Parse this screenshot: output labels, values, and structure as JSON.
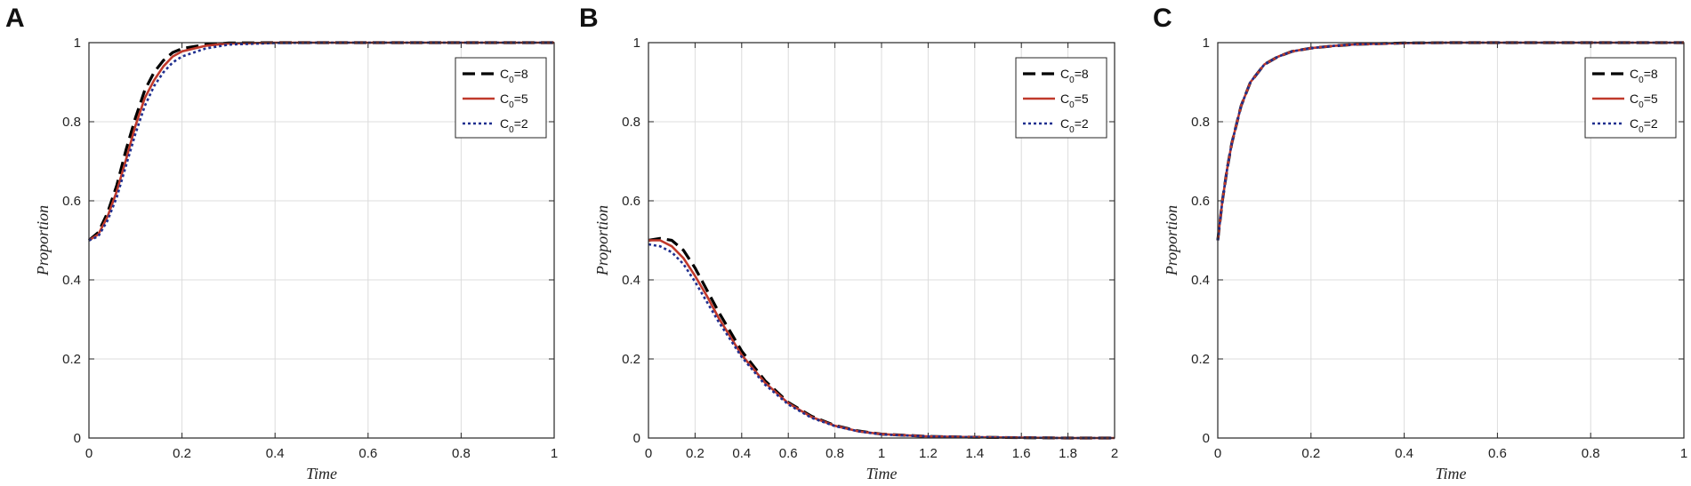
{
  "chart_data": [
    {
      "panel": "A",
      "type": "line",
      "xlabel": "Time",
      "ylabel": "Proportion",
      "xlim": [
        0,
        1
      ],
      "ylim": [
        0,
        1
      ],
      "xticks": [
        "0",
        "0.2",
        "0.4",
        "0.6",
        "0.8",
        "1"
      ],
      "yticks": [
        "0",
        "0.2",
        "0.4",
        "0.6",
        "0.8",
        "1"
      ],
      "grid": true,
      "legend_position": "top-right",
      "series": [
        {
          "name_main": "C",
          "name_sub": "0",
          "name_rest": "=8",
          "color": "#000000",
          "style": "dashed",
          "x": [
            0,
            0.02,
            0.04,
            0.06,
            0.08,
            0.1,
            0.12,
            0.14,
            0.16,
            0.18,
            0.2,
            0.25,
            0.3,
            0.4,
            0.5,
            1.0
          ],
          "y": [
            0.5,
            0.52,
            0.57,
            0.64,
            0.73,
            0.81,
            0.88,
            0.925,
            0.955,
            0.975,
            0.985,
            0.995,
            0.999,
            1.0,
            1.0,
            1.0
          ]
        },
        {
          "name_main": "C",
          "name_sub": "0",
          "name_rest": "=5",
          "color": "#c0392b",
          "style": "solid",
          "x": [
            0,
            0.02,
            0.04,
            0.06,
            0.08,
            0.1,
            0.12,
            0.14,
            0.16,
            0.18,
            0.2,
            0.25,
            0.3,
            0.4,
            0.5,
            1.0
          ],
          "y": [
            0.5,
            0.515,
            0.56,
            0.625,
            0.705,
            0.79,
            0.86,
            0.905,
            0.94,
            0.965,
            0.978,
            0.992,
            0.998,
            1.0,
            1.0,
            1.0
          ]
        },
        {
          "name_main": "C",
          "name_sub": "0",
          "name_rest": "=2",
          "color": "#1f2f8f",
          "style": "dotted",
          "x": [
            0,
            0.02,
            0.04,
            0.06,
            0.08,
            0.1,
            0.12,
            0.14,
            0.16,
            0.18,
            0.2,
            0.25,
            0.3,
            0.4,
            0.5,
            1.0
          ],
          "y": [
            0.5,
            0.51,
            0.55,
            0.61,
            0.69,
            0.77,
            0.84,
            0.89,
            0.925,
            0.95,
            0.965,
            0.985,
            0.995,
            0.999,
            1.0,
            1.0
          ]
        }
      ]
    },
    {
      "panel": "B",
      "type": "line",
      "xlabel": "Time",
      "ylabel": "Proportion",
      "xlim": [
        0,
        2
      ],
      "ylim": [
        0,
        1
      ],
      "xticks": [
        "0",
        "0.2",
        "0.4",
        "0.6",
        "0.8",
        "1",
        "1.2",
        "1.4",
        "1.6",
        "1.8",
        "2"
      ],
      "yticks": [
        "0",
        "0.2",
        "0.4",
        "0.6",
        "0.8",
        "1"
      ],
      "grid": true,
      "legend_position": "top-right",
      "series": [
        {
          "name_main": "C",
          "name_sub": "0",
          "name_rest": "=8",
          "color": "#000000",
          "style": "dashed",
          "x": [
            0,
            0.05,
            0.1,
            0.15,
            0.2,
            0.25,
            0.3,
            0.4,
            0.5,
            0.6,
            0.7,
            0.8,
            0.9,
            1.0,
            1.2,
            1.4,
            1.6,
            1.8,
            2.0
          ],
          "y": [
            0.5,
            0.505,
            0.5,
            0.475,
            0.43,
            0.375,
            0.32,
            0.22,
            0.145,
            0.09,
            0.055,
            0.032,
            0.018,
            0.01,
            0.004,
            0.002,
            0.001,
            0.0,
            0.0
          ]
        },
        {
          "name_main": "C",
          "name_sub": "0",
          "name_rest": "=5",
          "color": "#c0392b",
          "style": "solid",
          "x": [
            0,
            0.05,
            0.1,
            0.15,
            0.2,
            0.25,
            0.3,
            0.4,
            0.5,
            0.6,
            0.7,
            0.8,
            0.9,
            1.0,
            1.2,
            1.4,
            1.6,
            1.8,
            2.0
          ],
          "y": [
            0.5,
            0.5,
            0.485,
            0.455,
            0.41,
            0.36,
            0.305,
            0.21,
            0.14,
            0.088,
            0.053,
            0.031,
            0.017,
            0.01,
            0.004,
            0.002,
            0.001,
            0.0,
            0.0
          ]
        },
        {
          "name_main": "C",
          "name_sub": "0",
          "name_rest": "=2",
          "color": "#1f2f8f",
          "style": "dotted",
          "x": [
            0,
            0.05,
            0.1,
            0.15,
            0.2,
            0.25,
            0.3,
            0.4,
            0.5,
            0.6,
            0.7,
            0.8,
            0.9,
            1.0,
            1.2,
            1.4,
            1.6,
            1.8,
            2.0
          ],
          "y": [
            0.49,
            0.485,
            0.47,
            0.44,
            0.395,
            0.345,
            0.295,
            0.205,
            0.135,
            0.085,
            0.051,
            0.03,
            0.017,
            0.009,
            0.004,
            0.002,
            0.001,
            0.0,
            0.0
          ]
        }
      ]
    },
    {
      "panel": "C",
      "type": "line",
      "xlabel": "Time",
      "ylabel": "Proportion",
      "xlim": [
        0,
        1
      ],
      "ylim": [
        0,
        1
      ],
      "xticks": [
        "0",
        "0.2",
        "0.4",
        "0.6",
        "0.8",
        "1"
      ],
      "yticks": [
        "0",
        "0.2",
        "0.4",
        "0.6",
        "0.8",
        "1"
      ],
      "grid": true,
      "legend_position": "top-right",
      "series": [
        {
          "name_main": "C",
          "name_sub": "0",
          "name_rest": "=8",
          "color": "#000000",
          "style": "dashed",
          "x": [
            0,
            0.01,
            0.02,
            0.03,
            0.05,
            0.07,
            0.1,
            0.13,
            0.16,
            0.2,
            0.25,
            0.3,
            0.4,
            0.5,
            1.0
          ],
          "y": [
            0.5,
            0.6,
            0.68,
            0.745,
            0.84,
            0.9,
            0.945,
            0.965,
            0.978,
            0.986,
            0.992,
            0.996,
            0.999,
            1.0,
            1.0
          ]
        },
        {
          "name_main": "C",
          "name_sub": "0",
          "name_rest": "=5",
          "color": "#c0392b",
          "style": "solid",
          "x": [
            0,
            0.01,
            0.02,
            0.03,
            0.05,
            0.07,
            0.1,
            0.13,
            0.16,
            0.2,
            0.25,
            0.3,
            0.4,
            0.5,
            1.0
          ],
          "y": [
            0.5,
            0.6,
            0.68,
            0.745,
            0.84,
            0.9,
            0.945,
            0.965,
            0.978,
            0.986,
            0.992,
            0.996,
            0.999,
            1.0,
            1.0
          ]
        },
        {
          "name_main": "C",
          "name_sub": "0",
          "name_rest": "=2",
          "color": "#1f2f8f",
          "style": "dotted",
          "x": [
            0,
            0.01,
            0.02,
            0.03,
            0.05,
            0.07,
            0.1,
            0.13,
            0.16,
            0.2,
            0.25,
            0.3,
            0.4,
            0.5,
            1.0
          ],
          "y": [
            0.5,
            0.6,
            0.68,
            0.745,
            0.84,
            0.9,
            0.945,
            0.965,
            0.978,
            0.986,
            0.992,
            0.996,
            0.999,
            1.0,
            1.0
          ]
        }
      ]
    }
  ]
}
